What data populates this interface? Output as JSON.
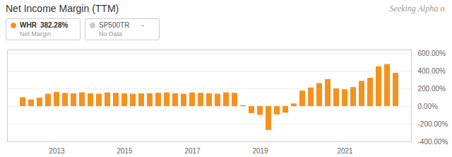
{
  "chart_data": {
    "type": "bar",
    "title": "Net Income Margin (TTM)",
    "categories": [
      null,
      null,
      null,
      null,
      "2013",
      null,
      null,
      null,
      null,
      null,
      null,
      null,
      "2015",
      null,
      null,
      null,
      null,
      null,
      null,
      null,
      "2017",
      null,
      null,
      null,
      null,
      null,
      null,
      null,
      "2019",
      null,
      null,
      null,
      null,
      null,
      null,
      null,
      null,
      null,
      "2021",
      null,
      null,
      null,
      null,
      null,
      null
    ],
    "series": [
      {
        "name": "WHR",
        "color": "#f5921e",
        "values": [
          100,
          75,
          95,
          140,
          160,
          150,
          145,
          155,
          145,
          140,
          155,
          150,
          145,
          140,
          145,
          145,
          150,
          155,
          145,
          140,
          155,
          150,
          145,
          140,
          155,
          150,
          10,
          -80,
          -100,
          -270,
          -95,
          -75,
          30,
          175,
          210,
          260,
          305,
          200,
          190,
          215,
          285,
          320,
          450,
          475,
          375
        ]
      },
      {
        "name": "SP500TR",
        "color": "#cccccc",
        "values": [
          null,
          null,
          null,
          null,
          null,
          null,
          null,
          null,
          null,
          null,
          null,
          null,
          null,
          null,
          null,
          null,
          null,
          null,
          null,
          null,
          null,
          null,
          null,
          null,
          null,
          null,
          null,
          null,
          null,
          null,
          null,
          null,
          null,
          null,
          null,
          null,
          null,
          null,
          null,
          null,
          null,
          null,
          null,
          null,
          null
        ]
      }
    ],
    "annotations": [
      "382.28%",
      "Net Margin",
      "-",
      "No Data",
      "Seeking Alpha",
      "α"
    ],
    "ylim": [
      -400,
      640
    ],
    "yticks": [
      {
        "value": -400,
        "label": "-400.00%"
      },
      {
        "value": -200,
        "label": "-200.00%"
      },
      {
        "value": 0,
        "label": "0.00%"
      },
      {
        "value": 200,
        "label": "200.00%"
      },
      {
        "value": 400,
        "label": "400.00%"
      },
      {
        "value": 600,
        "label": "600.00%"
      }
    ],
    "grid": true
  }
}
